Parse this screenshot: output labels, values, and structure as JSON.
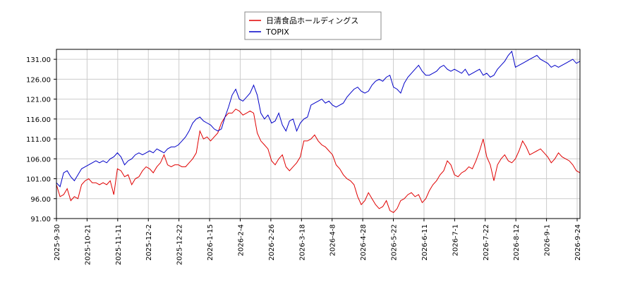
{
  "chart_data": {
    "type": "line",
    "title": "",
    "xlabel": "",
    "ylabel": "",
    "ylim": [
      91.0,
      133.5
    ],
    "y_ticks": [
      "91.00",
      "96.00",
      "101.00",
      "106.00",
      "111.00",
      "116.00",
      "121.00",
      "126.00",
      "131.00"
    ],
    "x_ticks": [
      "2025-9-30",
      "2025-10-21",
      "2025-11-11",
      "2025-12-2",
      "2025-12-22",
      "2026-1-15",
      "2026-2-4",
      "2026-2-26",
      "2026-3-18",
      "2026-4-8",
      "2026-4-28",
      "2026-5-22",
      "2026-6-11",
      "2026-7-1",
      "2026-7-22",
      "2026-8-12",
      "2026-9-1",
      "2026-9-24"
    ],
    "grid": true,
    "legend": "top-center",
    "series": [
      {
        "name": "日清食品ホールディングス",
        "color": "#e00000",
        "values": [
          [
            0,
            99.5
          ],
          [
            2,
            96.5
          ],
          [
            4,
            97.0
          ],
          [
            6,
            98.5
          ],
          [
            8,
            95.5
          ],
          [
            10,
            96.5
          ],
          [
            12,
            96.0
          ],
          [
            14,
            99.5
          ],
          [
            16,
            100.5
          ],
          [
            18,
            101.0
          ],
          [
            20,
            100.0
          ],
          [
            22,
            100.0
          ],
          [
            24,
            99.5
          ],
          [
            26,
            100.0
          ],
          [
            28,
            99.5
          ],
          [
            30,
            100.5
          ],
          [
            32,
            97.0
          ],
          [
            34,
            103.5
          ],
          [
            36,
            103.0
          ],
          [
            38,
            101.5
          ],
          [
            40,
            102.0
          ],
          [
            42,
            99.5
          ],
          [
            44,
            101.0
          ],
          [
            46,
            101.5
          ],
          [
            48,
            103.0
          ],
          [
            50,
            104.0
          ],
          [
            52,
            103.5
          ],
          [
            54,
            102.5
          ],
          [
            56,
            104.0
          ],
          [
            58,
            105.0
          ],
          [
            60,
            107.0
          ],
          [
            62,
            104.5
          ],
          [
            64,
            104.0
          ],
          [
            66,
            104.5
          ],
          [
            68,
            104.5
          ],
          [
            70,
            104.0
          ],
          [
            72,
            104.0
          ],
          [
            74,
            105.0
          ],
          [
            76,
            106.0
          ],
          [
            78,
            107.5
          ],
          [
            80,
            113.0
          ],
          [
            82,
            111.0
          ],
          [
            84,
            111.5
          ],
          [
            86,
            110.5
          ],
          [
            88,
            111.5
          ],
          [
            90,
            112.5
          ],
          [
            92,
            115.0
          ],
          [
            94,
            116.5
          ],
          [
            96,
            117.5
          ],
          [
            98,
            117.5
          ],
          [
            100,
            118.5
          ],
          [
            102,
            118.0
          ],
          [
            104,
            117.0
          ],
          [
            106,
            117.5
          ],
          [
            108,
            118.0
          ],
          [
            110,
            117.5
          ],
          [
            112,
            112.5
          ],
          [
            114,
            110.5
          ],
          [
            116,
            109.5
          ],
          [
            118,
            108.5
          ],
          [
            120,
            105.5
          ],
          [
            122,
            104.5
          ],
          [
            124,
            106.0
          ],
          [
            126,
            107.0
          ],
          [
            128,
            104.0
          ],
          [
            130,
            103.0
          ],
          [
            132,
            104.0
          ],
          [
            134,
            105.0
          ],
          [
            136,
            106.5
          ],
          [
            138,
            110.5
          ],
          [
            140,
            110.5
          ],
          [
            142,
            111.0
          ],
          [
            144,
            112.0
          ],
          [
            146,
            110.5
          ],
          [
            148,
            109.5
          ],
          [
            150,
            109.0
          ],
          [
            152,
            108.0
          ],
          [
            154,
            107.0
          ],
          [
            156,
            104.5
          ],
          [
            158,
            103.5
          ],
          [
            160,
            102.0
          ],
          [
            162,
            101.0
          ],
          [
            164,
            100.5
          ],
          [
            166,
            99.5
          ],
          [
            168,
            96.5
          ],
          [
            170,
            94.5
          ],
          [
            172,
            95.5
          ],
          [
            174,
            97.5
          ],
          [
            176,
            96.0
          ],
          [
            178,
            94.5
          ],
          [
            180,
            93.5
          ],
          [
            182,
            94.0
          ],
          [
            184,
            95.5
          ],
          [
            186,
            93.0
          ],
          [
            188,
            92.5
          ],
          [
            190,
            93.5
          ],
          [
            192,
            95.5
          ],
          [
            194,
            96.0
          ],
          [
            196,
            97.0
          ],
          [
            198,
            97.5
          ],
          [
            200,
            96.5
          ],
          [
            202,
            97.0
          ],
          [
            204,
            95.0
          ],
          [
            206,
            96.0
          ],
          [
            208,
            98.0
          ],
          [
            210,
            99.5
          ],
          [
            212,
            100.5
          ],
          [
            214,
            102.0
          ],
          [
            216,
            103.0
          ],
          [
            218,
            105.5
          ],
          [
            220,
            104.5
          ],
          [
            222,
            102.0
          ],
          [
            224,
            101.5
          ],
          [
            226,
            102.5
          ],
          [
            228,
            103.0
          ],
          [
            230,
            104.0
          ],
          [
            232,
            103.5
          ],
          [
            234,
            105.5
          ],
          [
            236,
            108.0
          ],
          [
            238,
            111.0
          ],
          [
            240,
            106.5
          ],
          [
            242,
            104.5
          ],
          [
            244,
            100.5
          ],
          [
            246,
            104.5
          ],
          [
            248,
            106.0
          ],
          [
            250,
            107.0
          ],
          [
            252,
            105.5
          ],
          [
            254,
            105.0
          ],
          [
            256,
            106.0
          ],
          [
            258,
            108.0
          ],
          [
            260,
            110.5
          ],
          [
            262,
            109.0
          ],
          [
            264,
            107.0
          ],
          [
            266,
            107.5
          ],
          [
            268,
            108.0
          ],
          [
            270,
            108.5
          ],
          [
            272,
            107.5
          ],
          [
            274,
            106.5
          ],
          [
            276,
            105.0
          ],
          [
            278,
            106.0
          ],
          [
            280,
            107.5
          ],
          [
            282,
            106.5
          ],
          [
            284,
            106.0
          ],
          [
            286,
            105.5
          ],
          [
            288,
            104.5
          ],
          [
            290,
            103.0
          ],
          [
            292,
            102.5
          ]
        ]
      },
      {
        "name": "TOPIX",
        "color": "#0000c8",
        "values": [
          [
            0,
            100.0
          ],
          [
            2,
            99.0
          ],
          [
            4,
            102.5
          ],
          [
            6,
            103.0
          ],
          [
            8,
            101.5
          ],
          [
            10,
            100.5
          ],
          [
            12,
            102.0
          ],
          [
            14,
            103.5
          ],
          [
            16,
            104.0
          ],
          [
            18,
            104.5
          ],
          [
            20,
            105.0
          ],
          [
            22,
            105.5
          ],
          [
            24,
            105.0
          ],
          [
            26,
            105.5
          ],
          [
            28,
            105.0
          ],
          [
            30,
            106.0
          ],
          [
            32,
            106.5
          ],
          [
            34,
            107.5
          ],
          [
            36,
            106.5
          ],
          [
            38,
            104.5
          ],
          [
            40,
            105.5
          ],
          [
            42,
            106.0
          ],
          [
            44,
            107.0
          ],
          [
            46,
            107.5
          ],
          [
            48,
            107.0
          ],
          [
            50,
            107.5
          ],
          [
            52,
            108.0
          ],
          [
            54,
            107.5
          ],
          [
            56,
            108.5
          ],
          [
            58,
            108.0
          ],
          [
            60,
            107.5
          ],
          [
            62,
            108.5
          ],
          [
            64,
            109.0
          ],
          [
            66,
            109.0
          ],
          [
            68,
            109.5
          ],
          [
            70,
            110.5
          ],
          [
            72,
            111.5
          ],
          [
            74,
            113.0
          ],
          [
            76,
            115.0
          ],
          [
            78,
            116.0
          ],
          [
            80,
            116.5
          ],
          [
            82,
            115.5
          ],
          [
            84,
            115.0
          ],
          [
            86,
            114.5
          ],
          [
            88,
            113.5
          ],
          [
            90,
            113.0
          ],
          [
            92,
            113.5
          ],
          [
            94,
            116.5
          ],
          [
            96,
            119.0
          ],
          [
            98,
            122.0
          ],
          [
            100,
            123.5
          ],
          [
            102,
            121.0
          ],
          [
            104,
            120.5
          ],
          [
            106,
            121.5
          ],
          [
            108,
            122.5
          ],
          [
            110,
            124.5
          ],
          [
            112,
            122.0
          ],
          [
            114,
            117.5
          ],
          [
            116,
            116.0
          ],
          [
            118,
            117.0
          ],
          [
            120,
            115.0
          ],
          [
            122,
            115.5
          ],
          [
            124,
            117.5
          ],
          [
            126,
            114.5
          ],
          [
            128,
            113.0
          ],
          [
            130,
            115.5
          ],
          [
            132,
            116.0
          ],
          [
            134,
            113.0
          ],
          [
            136,
            115.0
          ],
          [
            138,
            116.0
          ],
          [
            140,
            116.5
          ],
          [
            142,
            119.5
          ],
          [
            144,
            120.0
          ],
          [
            146,
            120.5
          ],
          [
            148,
            121.0
          ],
          [
            150,
            120.0
          ],
          [
            152,
            120.5
          ],
          [
            154,
            119.5
          ],
          [
            156,
            119.0
          ],
          [
            158,
            119.5
          ],
          [
            160,
            120.0
          ],
          [
            162,
            121.5
          ],
          [
            164,
            122.5
          ],
          [
            166,
            123.5
          ],
          [
            168,
            124.0
          ],
          [
            170,
            123.0
          ],
          [
            172,
            122.5
          ],
          [
            174,
            123.0
          ],
          [
            176,
            124.5
          ],
          [
            178,
            125.5
          ],
          [
            180,
            126.0
          ],
          [
            182,
            125.5
          ],
          [
            184,
            126.5
          ],
          [
            186,
            127.0
          ],
          [
            188,
            124.0
          ],
          [
            190,
            123.5
          ],
          [
            192,
            122.5
          ],
          [
            194,
            125.0
          ],
          [
            196,
            126.5
          ],
          [
            198,
            127.5
          ],
          [
            200,
            128.5
          ],
          [
            202,
            129.5
          ],
          [
            204,
            128.0
          ],
          [
            206,
            127.0
          ],
          [
            208,
            127.0
          ],
          [
            210,
            127.5
          ],
          [
            212,
            128.0
          ],
          [
            214,
            129.0
          ],
          [
            216,
            129.5
          ],
          [
            218,
            128.5
          ],
          [
            220,
            128.0
          ],
          [
            222,
            128.5
          ],
          [
            224,
            128.0
          ],
          [
            226,
            127.5
          ],
          [
            228,
            128.5
          ],
          [
            230,
            127.0
          ],
          [
            232,
            127.5
          ],
          [
            234,
            128.0
          ],
          [
            236,
            128.5
          ],
          [
            238,
            127.0
          ],
          [
            240,
            127.5
          ],
          [
            242,
            126.5
          ],
          [
            244,
            127.0
          ],
          [
            246,
            128.5
          ],
          [
            248,
            129.5
          ],
          [
            250,
            130.5
          ],
          [
            252,
            132.0
          ],
          [
            254,
            133.0
          ],
          [
            256,
            129.0
          ],
          [
            258,
            129.5
          ],
          [
            260,
            130.0
          ],
          [
            262,
            130.5
          ],
          [
            264,
            131.0
          ],
          [
            266,
            131.5
          ],
          [
            268,
            132.0
          ],
          [
            270,
            131.0
          ],
          [
            272,
            130.5
          ],
          [
            274,
            130.0
          ],
          [
            276,
            129.0
          ],
          [
            278,
            129.5
          ],
          [
            280,
            129.0
          ],
          [
            282,
            129.5
          ],
          [
            284,
            130.0
          ],
          [
            286,
            130.5
          ],
          [
            288,
            131.0
          ],
          [
            290,
            130.0
          ],
          [
            292,
            130.5
          ]
        ]
      }
    ]
  }
}
